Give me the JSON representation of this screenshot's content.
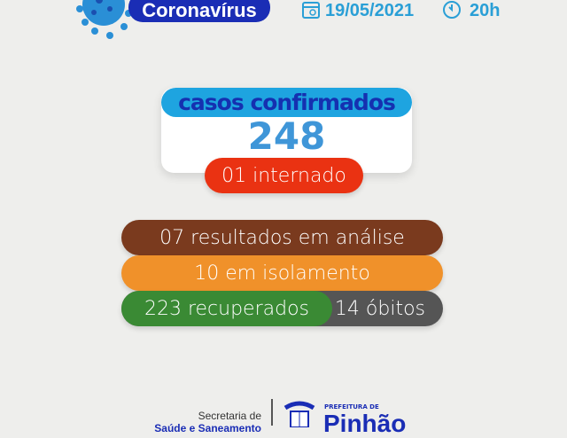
{
  "header": {
    "title": "Coronavírus",
    "date": "19/05/2021",
    "time": "20h",
    "icons": [
      "virus-icon",
      "calendar-icon",
      "clock-icon"
    ]
  },
  "confirmed": {
    "label": "casos confirmados",
    "value": "248"
  },
  "hospitalized": "01 internado",
  "stats": {
    "analysis": "07 resultados em análise",
    "isolation": "10 em isolamento",
    "recovered": "223 recuperados",
    "deaths": "14 óbitos"
  },
  "footer": {
    "department": "Secretaria de",
    "department_line2": "Saúde e Saneamento",
    "prefecture_prefix": "PREFEITURA DE",
    "city": "Pinhão",
    "seal_text": "PINHÃO"
  },
  "colors": {
    "title_blue": "#1a2db5",
    "accent_blue": "#2a9fd6",
    "red": "#ea3212",
    "brown": "#7a3a1e",
    "orange": "#f0912a",
    "green": "#3a8a34",
    "grey": "#555555"
  }
}
